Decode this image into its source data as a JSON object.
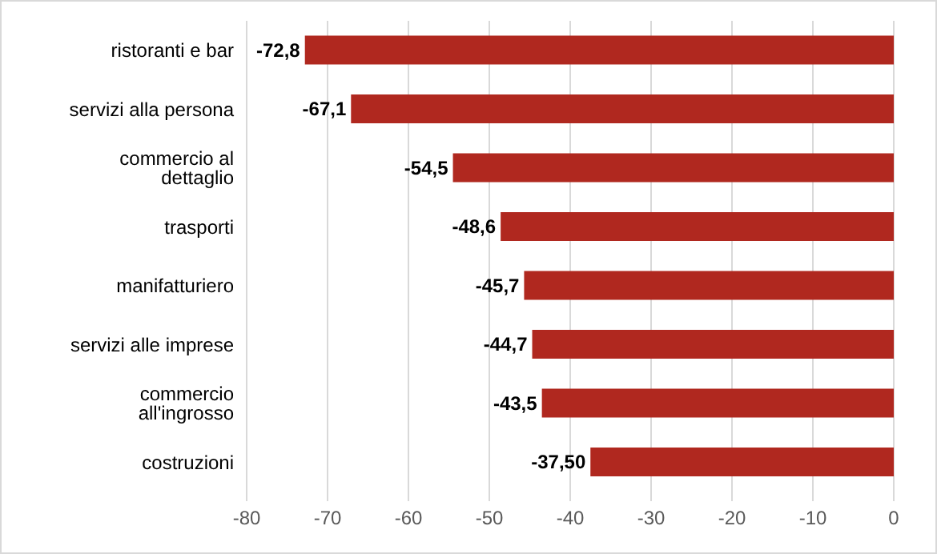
{
  "chart_data": {
    "type": "bar",
    "orientation": "horizontal",
    "categories": [
      "ristoranti e bar",
      "servizi alla persona",
      "commercio al dettaglio",
      "trasporti",
      "manifatturiero",
      "servizi alle imprese",
      "commercio all'ingrosso",
      "costruzioni"
    ],
    "values": [
      -72.8,
      -67.1,
      -54.5,
      -48.6,
      -45.7,
      -44.7,
      -43.5,
      -37.5
    ],
    "value_labels": [
      "-72,8",
      "-67,1",
      "-54,5",
      "-48,6",
      "-45,7",
      "-44,7",
      "-43,5",
      "-37,50"
    ],
    "color": "#b0281f",
    "xlim": [
      -80,
      0
    ],
    "xticks": [
      -80,
      -70,
      -60,
      -50,
      -40,
      -30,
      -20,
      -10,
      0
    ],
    "grid": "x"
  }
}
